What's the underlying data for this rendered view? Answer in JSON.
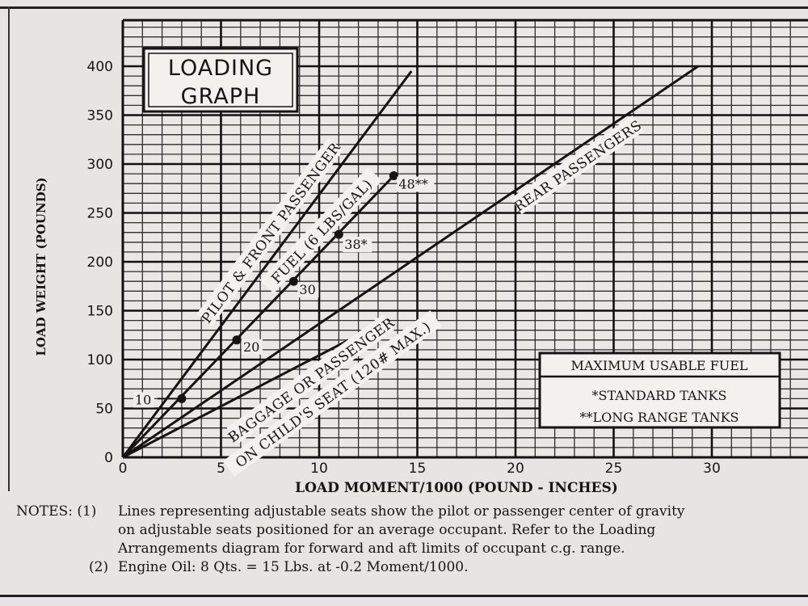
{
  "chart_data": {
    "type": "line",
    "title": "LOADING GRAPH",
    "title_lines": [
      "LOADING",
      "GRAPH"
    ],
    "xlabel": "LOAD MOMENT/1000 (POUND - INCHES)",
    "ylabel": "LOAD WEIGHT (POUNDS)",
    "xlim": [
      0,
      34
    ],
    "ylim": [
      0,
      400
    ],
    "grid": true,
    "x_ticks": [
      0,
      5,
      10,
      15,
      20,
      25,
      30
    ],
    "y_ticks": [
      0,
      50,
      100,
      150,
      200,
      250,
      300,
      350,
      400
    ],
    "series": [
      {
        "name": "PILOT & FRONT PASSENGER",
        "x": [
          0,
          14.7
        ],
        "y": [
          0,
          395
        ]
      },
      {
        "name": "FUEL (6 LBS/GAL)",
        "x": [
          0,
          13.8
        ],
        "y": [
          0,
          288
        ],
        "markers": [
          {
            "label": "10",
            "x": 3.0,
            "y": 60
          },
          {
            "label": "20",
            "x": 5.8,
            "y": 120
          },
          {
            "label": "30",
            "x": 8.7,
            "y": 180
          },
          {
            "label": "38*",
            "x": 11.0,
            "y": 228
          },
          {
            "label": "48**",
            "x": 13.8,
            "y": 288
          }
        ]
      },
      {
        "name": "REAR PASSENGERS",
        "x": [
          0,
          29.3
        ],
        "y": [
          0,
          400
        ]
      },
      {
        "name": "BAGGAGE OR PASSENGER ON CHILD'S SEAT (120# MAX.)",
        "x": [
          0,
          11.5
        ],
        "y": [
          0,
          120
        ]
      }
    ],
    "line_labels": [
      {
        "text": "PILOT & FRONT PASSENGER"
      },
      {
        "text": "FUEL (6 LBS/GAL)"
      },
      {
        "text": "REAR PASSENGERS"
      },
      {
        "text": "BAGGAGE OR PASSENGER"
      },
      {
        "text": "ON CHILD'S SEAT (120# MAX.)"
      }
    ],
    "legend": {
      "title": "MAXIMUM USABLE FUEL",
      "items": [
        "*STANDARD TANKS",
        "**LONG RANGE TANKS"
      ],
      "position": "bottom-right"
    }
  },
  "notes": {
    "lead": "NOTES: (1)",
    "line1": "Lines representing adjustable seats show the pilot or passenger center of gravity",
    "line2": "on adjustable seats positioned for an average occupant.  Refer to the Loading",
    "line3": "Arrangements diagram for forward and aft limits of occupant c.g. range.",
    "lead2": "(2)",
    "line4": "Engine Oil:  8 Qts. = 15 Lbs. at -0.2 Moment/1000."
  }
}
